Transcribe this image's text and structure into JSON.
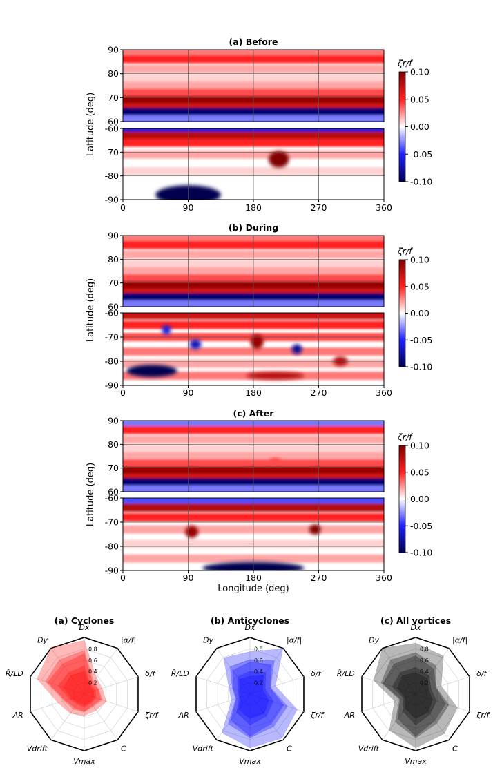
{
  "chart_data": [
    {
      "type": "heatmap",
      "title": "(a) Before",
      "xlabel": "",
      "ylabel": "Latitude (deg)",
      "xlim": [
        0,
        360
      ],
      "xticks": [
        "0",
        "90",
        "180",
        "270",
        "360"
      ],
      "north_ylim": [
        60,
        90
      ],
      "north_yticks": [
        "90",
        "80",
        "70",
        "60"
      ],
      "south_ylim": [
        -90,
        -60
      ],
      "south_yticks": [
        "-60",
        "-70",
        "-80",
        "-90"
      ],
      "colorbar": {
        "label": "ζr/f",
        "range": [
          -0.1,
          0.1
        ],
        "ticks": [
          "0.10",
          "0.05",
          "0.00",
          "-0.05",
          "-0.10"
        ],
        "colormap": "seismic"
      },
      "north_bands": [
        {
          "lat": 89,
          "value": 0.03
        },
        {
          "lat": 86,
          "value": 0.05
        },
        {
          "lat": 82,
          "value": 0.02
        },
        {
          "lat": 78,
          "value": 0.01
        },
        {
          "lat": 75,
          "value": 0.02
        },
        {
          "lat": 72,
          "value": 0.04
        },
        {
          "lat": 69,
          "value": 0.09
        },
        {
          "lat": 66,
          "value": 0.07
        },
        {
          "lat": 64,
          "value": -0.09
        },
        {
          "lat": 61,
          "value": -0.03
        }
      ],
      "south_bands": [
        {
          "lat": -61,
          "value": -0.06
        },
        {
          "lat": -63,
          "value": 0.08
        },
        {
          "lat": -66,
          "value": 0.05
        },
        {
          "lat": -71,
          "value": 0.02
        },
        {
          "lat": -78,
          "value": 0.01
        },
        {
          "lat": -86,
          "value": 0.0
        }
      ],
      "features": [
        {
          "lon": 215,
          "lat": -73,
          "value": 0.1,
          "rlon": 14,
          "rlat": 3.5
        },
        {
          "lon": 90,
          "lat": -88,
          "value": -0.1,
          "rlon": 45,
          "rlat": 4
        }
      ]
    },
    {
      "type": "heatmap",
      "title": "(b) During",
      "xlabel": "",
      "ylabel": "Latitude (deg)",
      "xlim": [
        0,
        360
      ],
      "xticks": [
        "0",
        "90",
        "180",
        "270",
        "360"
      ],
      "north_ylim": [
        60,
        90
      ],
      "north_yticks": [
        "90",
        "80",
        "70",
        "60"
      ],
      "south_ylim": [
        -90,
        -60
      ],
      "south_yticks": [
        "-60",
        "-70",
        "-80",
        "-90"
      ],
      "colorbar": {
        "label": "ζr/f",
        "range": [
          -0.1,
          0.1
        ],
        "ticks": [
          "0.10",
          "0.05",
          "0.00",
          "-0.05",
          "-0.10"
        ],
        "colormap": "seismic"
      },
      "north_bands": [
        {
          "lat": 89,
          "value": 0.03
        },
        {
          "lat": 86,
          "value": 0.05
        },
        {
          "lat": 82,
          "value": 0.02
        },
        {
          "lat": 78,
          "value": 0.01
        },
        {
          "lat": 75,
          "value": 0.02
        },
        {
          "lat": 72,
          "value": 0.04
        },
        {
          "lat": 69,
          "value": 0.09
        },
        {
          "lat": 66,
          "value": 0.07
        },
        {
          "lat": 64,
          "value": -0.09
        },
        {
          "lat": 61,
          "value": -0.03
        }
      ],
      "south_bands": [
        {
          "lat": -61,
          "value": 0.07
        },
        {
          "lat": -65,
          "value": 0.05
        },
        {
          "lat": -70,
          "value": 0.04
        },
        {
          "lat": -76,
          "value": 0.03
        },
        {
          "lat": -81,
          "value": 0.02
        },
        {
          "lat": -86,
          "value": 0.03
        }
      ],
      "features": [
        {
          "lon": 40,
          "lat": -84,
          "value": -0.1,
          "rlon": 35,
          "rlat": 2.5
        },
        {
          "lon": 100,
          "lat": -73,
          "value": -0.07,
          "rlon": 8,
          "rlat": 2
        },
        {
          "lon": 185,
          "lat": -72,
          "value": 0.09,
          "rlon": 9,
          "rlat": 3
        },
        {
          "lon": 240,
          "lat": -75,
          "value": -0.08,
          "rlon": 7,
          "rlat": 2
        },
        {
          "lon": 300,
          "lat": -80,
          "value": 0.08,
          "rlon": 10,
          "rlat": 2
        },
        {
          "lon": 210,
          "lat": -86,
          "value": 0.08,
          "rlon": 40,
          "rlat": 1.5
        },
        {
          "lon": 60,
          "lat": -67,
          "value": -0.06,
          "rlon": 6,
          "rlat": 2
        }
      ]
    },
    {
      "type": "heatmap",
      "title": "(c) After",
      "xlabel": "Longitude (deg)",
      "ylabel": "Latitude (deg)",
      "xlim": [
        0,
        360
      ],
      "xticks": [
        "0",
        "90",
        "180",
        "270",
        "360"
      ],
      "north_ylim": [
        60,
        90
      ],
      "north_yticks": [
        "90",
        "80",
        "70",
        "60"
      ],
      "south_ylim": [
        -90,
        -60
      ],
      "south_yticks": [
        "-60",
        "-70",
        "-80",
        "-90"
      ],
      "colorbar": {
        "label": "ζr/f",
        "range": [
          -0.1,
          0.1
        ],
        "ticks": [
          "0.10",
          "0.05",
          "0.00",
          "-0.05",
          "-0.10"
        ],
        "colormap": "seismic"
      },
      "north_bands": [
        {
          "lat": 89,
          "value": -0.03
        },
        {
          "lat": 86,
          "value": 0.05
        },
        {
          "lat": 82,
          "value": 0.02
        },
        {
          "lat": 78,
          "value": 0.01
        },
        {
          "lat": 75,
          "value": 0.02
        },
        {
          "lat": 72,
          "value": 0.04
        },
        {
          "lat": 69,
          "value": 0.09
        },
        {
          "lat": 66,
          "value": 0.07
        },
        {
          "lat": 64,
          "value": -0.09
        },
        {
          "lat": 61,
          "value": -0.03
        }
      ],
      "south_bands": [
        {
          "lat": -61,
          "value": -0.04
        },
        {
          "lat": -64,
          "value": 0.08
        },
        {
          "lat": -68,
          "value": 0.05
        },
        {
          "lat": -73,
          "value": 0.02
        },
        {
          "lat": -79,
          "value": 0.01
        },
        {
          "lat": -85,
          "value": 0.02
        }
      ],
      "features": [
        {
          "lon": 95,
          "lat": -74,
          "value": 0.09,
          "rlon": 9,
          "rlat": 2.5
        },
        {
          "lon": 265,
          "lat": -73,
          "value": 0.1,
          "rlon": 8,
          "rlat": 2
        },
        {
          "lon": 180,
          "lat": -89,
          "value": -0.1,
          "rlon": 70,
          "rlat": 2.5
        },
        {
          "lon": 210,
          "lat": 73,
          "value": 0.04,
          "rlon": 8,
          "rlat": 1.5
        }
      ]
    },
    {
      "type": "radar",
      "title": "(a) Cyclones",
      "color": "#ff0000",
      "axes": [
        "Dx",
        "|α/f|",
        "δ/f",
        "ζr/f",
        "C",
        "Vmax",
        "Vdrift",
        "AR",
        "R̂/LD",
        "Dy"
      ],
      "rticks": [
        "0.2",
        "0.4",
        "0.6",
        "0.8"
      ],
      "values": [
        0.9,
        0.3,
        0.3,
        0.35,
        0.3,
        0.35,
        0.35,
        0.45,
        0.85,
        0.9
      ]
    },
    {
      "type": "radar",
      "title": "(b) Anticyclones",
      "color": "#0000ff",
      "axes": [
        "Dx",
        "|α/f|",
        "δ/f",
        "ζr/f",
        "C",
        "Vmax",
        "Vdrift",
        "AR",
        "R̂/LD",
        "Dy"
      ],
      "rticks": [
        "0.2",
        "0.4",
        "0.6",
        "0.8"
      ],
      "values": [
        0.7,
        0.9,
        0.45,
        0.8,
        0.9,
        0.95,
        0.75,
        0.3,
        0.35,
        0.7
      ]
    },
    {
      "type": "radar",
      "title": "(c) All vortices",
      "color": "#000000",
      "axes": [
        "Dx",
        "|α/f|",
        "δ/f",
        "ζr/f",
        "C",
        "Vmax",
        "Vdrift",
        "AR",
        "R̂/LD",
        "Dy"
      ],
      "rticks": [
        "0.2",
        "0.4",
        "0.6",
        "0.8"
      ],
      "values": [
        0.85,
        0.75,
        0.45,
        0.7,
        0.8,
        0.95,
        0.7,
        0.35,
        0.75,
        0.9
      ]
    }
  ]
}
